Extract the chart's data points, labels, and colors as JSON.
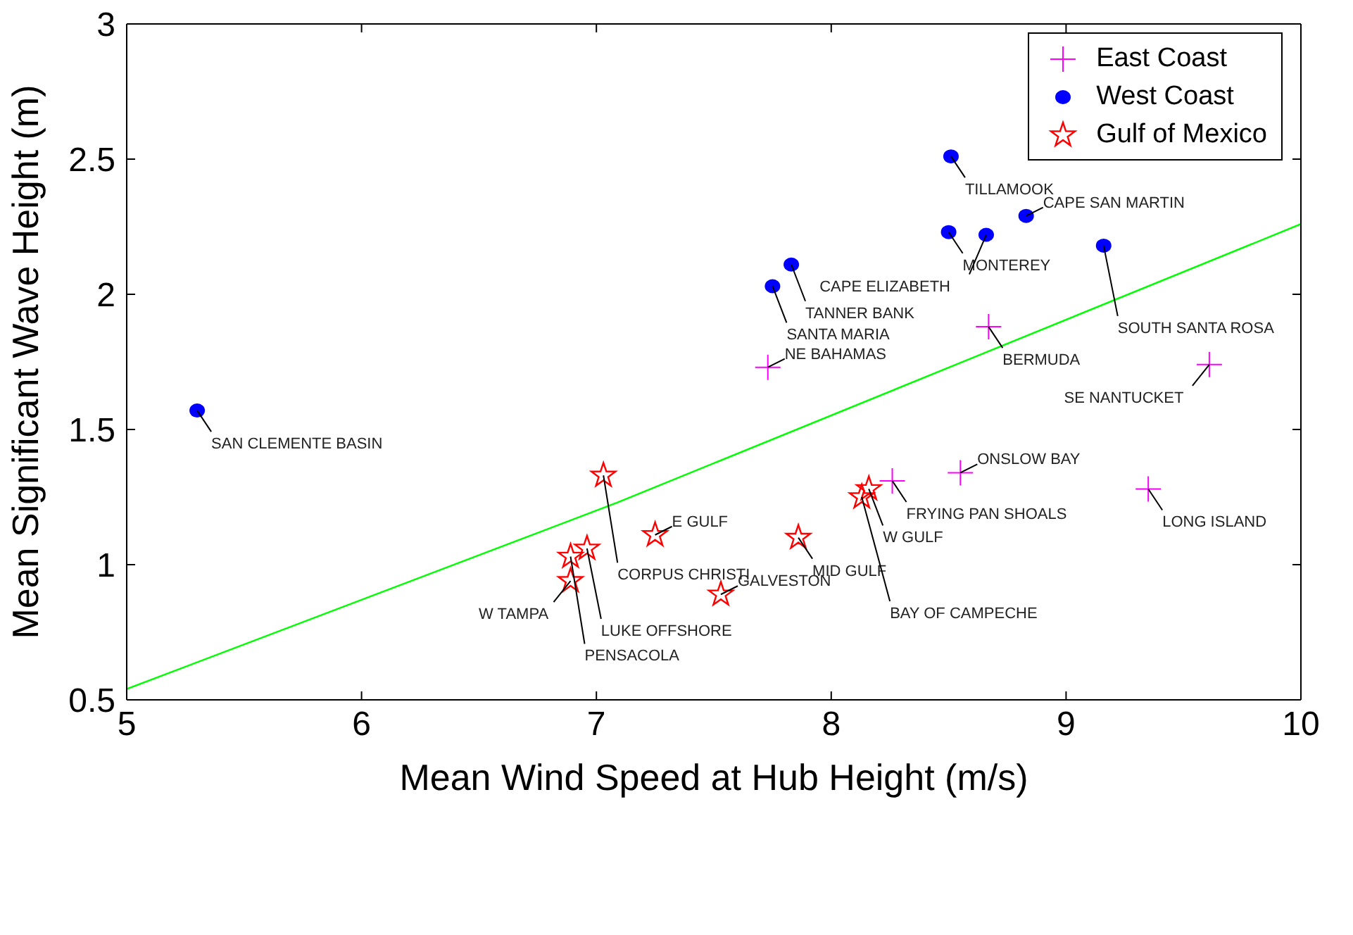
{
  "chart_data": {
    "type": "scatter",
    "xlabel": "Mean Wind Speed at Hub Height (m/s)",
    "ylabel": "Mean Significant Wave Height (m)",
    "xlim": [
      5,
      10
    ],
    "xticks": [
      5,
      6,
      7,
      8,
      9,
      10
    ],
    "ylim": [
      0.5,
      3
    ],
    "yticks": [
      0.5,
      1,
      1.5,
      2,
      2.5,
      3
    ],
    "legend": "top right",
    "series": [
      {
        "name": "East Coast",
        "color": "#ff00ff",
        "marker": "cross",
        "x": [
          7.73,
          8.67,
          9.61,
          8.26,
          8.55,
          9.35
        ],
        "values": [
          1.73,
          1.88,
          1.74,
          1.31,
          1.34,
          1.28
        ]
      },
      {
        "name": "West Coast",
        "color": "#0000ff",
        "marker": "circle",
        "x": [
          8.51,
          8.5,
          8.66,
          8.83,
          9.16,
          7.83,
          7.75,
          5.3
        ],
        "values": [
          2.51,
          2.23,
          2.22,
          2.29,
          2.18,
          2.11,
          2.03,
          1.57
        ]
      },
      {
        "name": "Gulf of Mexico",
        "color": "#ff0000",
        "marker": "star",
        "x": [
          7.03,
          7.25,
          6.96,
          6.89,
          6.89,
          7.53,
          7.86,
          8.16,
          8.13
        ],
        "values": [
          1.33,
          1.11,
          1.06,
          1.03,
          0.94,
          0.89,
          1.1,
          1.28,
          1.25
        ]
      },
      {
        "type": "line",
        "color": "#00ff00",
        "marker": "none",
        "x": [
          5,
          7.09,
          10
        ],
        "values": [
          0.54,
          1.23,
          2.26
        ]
      }
    ],
    "annotations": [
      {
        "text": "NE BAHAMAS",
        "x": 7.73,
        "y": 1.73
      },
      {
        "text": "BERMUDA",
        "x": 8.67,
        "y": 1.88
      },
      {
        "text": "SE NANTUCKET",
        "x": 9.61,
        "y": 1.74
      },
      {
        "text": "FRYING PAN SHOALS",
        "x": 8.26,
        "y": 1.31
      },
      {
        "text": "ONSLOW BAY",
        "x": 8.55,
        "y": 1.34
      },
      {
        "text": "LONG ISLAND",
        "x": 9.35,
        "y": 1.28
      },
      {
        "text": "TILLAMOOK",
        "x": 8.51,
        "y": 2.51
      },
      {
        "text": "MONTEREY",
        "x": 8.5,
        "y": 2.23
      },
      {
        "text": "CAPE ELIZABETH",
        "x": 8.66,
        "y": 2.22
      },
      {
        "text": "CAPE SAN MARTIN",
        "x": 8.83,
        "y": 2.29
      },
      {
        "text": "SOUTH SANTA ROSA",
        "x": 9.16,
        "y": 2.18
      },
      {
        "text": "TANNER BANK",
        "x": 7.83,
        "y": 2.11
      },
      {
        "text": "SANTA MARIA",
        "x": 7.75,
        "y": 2.03
      },
      {
        "text": "SAN CLEMENTE BASIN",
        "x": 5.3,
        "y": 1.57
      },
      {
        "text": "CORPUS CHRISTI",
        "x": 7.03,
        "y": 1.33
      },
      {
        "text": "E GULF",
        "x": 7.25,
        "y": 1.11
      },
      {
        "text": "LUKE OFFSHORE",
        "x": 6.96,
        "y": 1.06
      },
      {
        "text": "PENSACOLA",
        "x": 6.89,
        "y": 1.03
      },
      {
        "text": "W TAMPA",
        "x": 6.89,
        "y": 0.94
      },
      {
        "text": "GALVESTON",
        "x": 7.53,
        "y": 0.89
      },
      {
        "text": "MID GULF",
        "x": 7.86,
        "y": 1.1
      },
      {
        "text": "W GULF",
        "x": 8.16,
        "y": 1.28
      },
      {
        "text": "BAY OF CAMPECHE",
        "x": 8.13,
        "y": 1.25
      }
    ]
  }
}
